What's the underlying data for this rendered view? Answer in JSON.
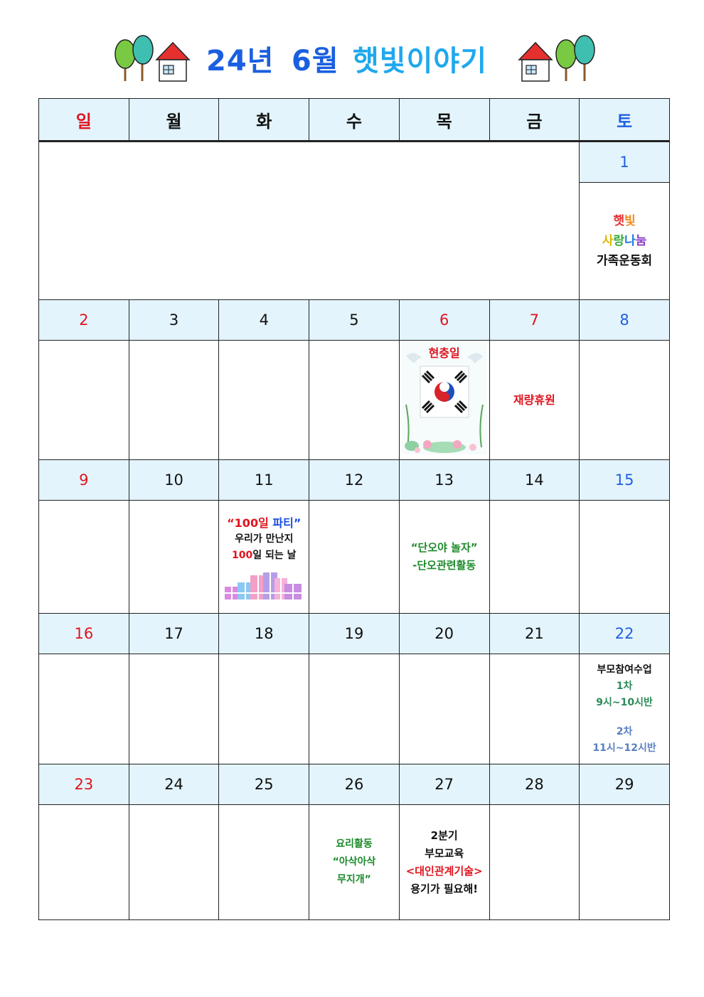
{
  "title": {
    "year": "24년",
    "month": "6월",
    "name": "햇빛이야기"
  },
  "colors": {
    "header_bg": "#e3f4fd",
    "sunday": "#e0141e",
    "saturday": "#1f5fe0",
    "border": "#222222"
  },
  "weekdays": [
    "일",
    "월",
    "화",
    "수",
    "목",
    "금",
    "토"
  ],
  "weeks": [
    {
      "dates": [
        "",
        "",
        "",
        "",
        "",
        "",
        "1"
      ]
    },
    {
      "dates": [
        "2",
        "3",
        "4",
        "5",
        "6",
        "7",
        "8"
      ]
    },
    {
      "dates": [
        "9",
        "10",
        "11",
        "12",
        "13",
        "14",
        "15"
      ]
    },
    {
      "dates": [
        "16",
        "17",
        "18",
        "19",
        "20",
        "21",
        "22"
      ]
    },
    {
      "dates": [
        "23",
        "24",
        "25",
        "26",
        "27",
        "28",
        "29"
      ]
    }
  ],
  "events": {
    "jun1": {
      "line1": "햇빛",
      "line2": "사랑나눔",
      "line3": "가족운동회"
    },
    "jun6": {
      "label": "현충일"
    },
    "jun7": {
      "label": "재량휴원"
    },
    "jun11": {
      "title_a": "“100일",
      "title_b": "파티”",
      "line2": "우리가 만난지",
      "line3_num": "100",
      "line3_rest": "일 되는 날"
    },
    "jun13": {
      "line1": "“단오야 놀자”",
      "line2": "-단오관련활동"
    },
    "jun22": {
      "line1": "부모참여수업",
      "line2": "1차",
      "line3": "9시~10시반",
      "line4": "2차",
      "line5": "11시~12시반"
    },
    "jun26": {
      "line1": "요리활동",
      "line2": "“아삭아삭",
      "line3": "무지개”"
    },
    "jun27": {
      "line1": "2분기",
      "line2": "부모교육",
      "line3": "<대인관계기술>",
      "line4": "용기가 필요해!"
    }
  }
}
